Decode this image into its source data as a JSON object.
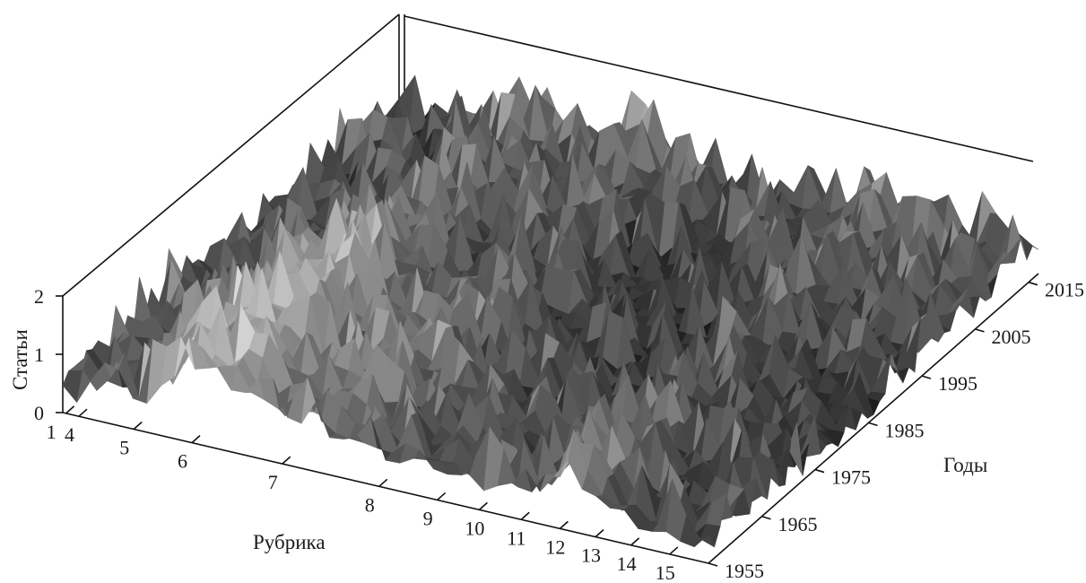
{
  "chart_data": {
    "type": "surface",
    "xlabel": "Рубрика",
    "ylabel": "Годы",
    "zlabel": "Статьи",
    "x_ticks": [
      "1",
      "4",
      "5",
      "6",
      "7",
      "8",
      "9",
      "10",
      "11",
      "12",
      "13",
      "14",
      "15"
    ],
    "y_ticks": [
      "1955",
      "1965",
      "1975",
      "1985",
      "1995",
      "2005",
      "2015"
    ],
    "z_ticks": [
      "0",
      "1",
      "2"
    ],
    "zlim": [
      0,
      2
    ],
    "years_range": [
      1955,
      2015
    ],
    "colormap": "grayscale",
    "colors": {
      "low": "#1e1e1e",
      "high": "#e8e8e8",
      "axis": "#111111",
      "background": "#ffffff"
    },
    "ridges": [
      {
        "rubric": "5–7",
        "level": 1.4
      },
      {
        "rubric": "7–8",
        "level": 1.2
      },
      {
        "rubric": "11–12",
        "level": 1.1
      }
    ]
  }
}
